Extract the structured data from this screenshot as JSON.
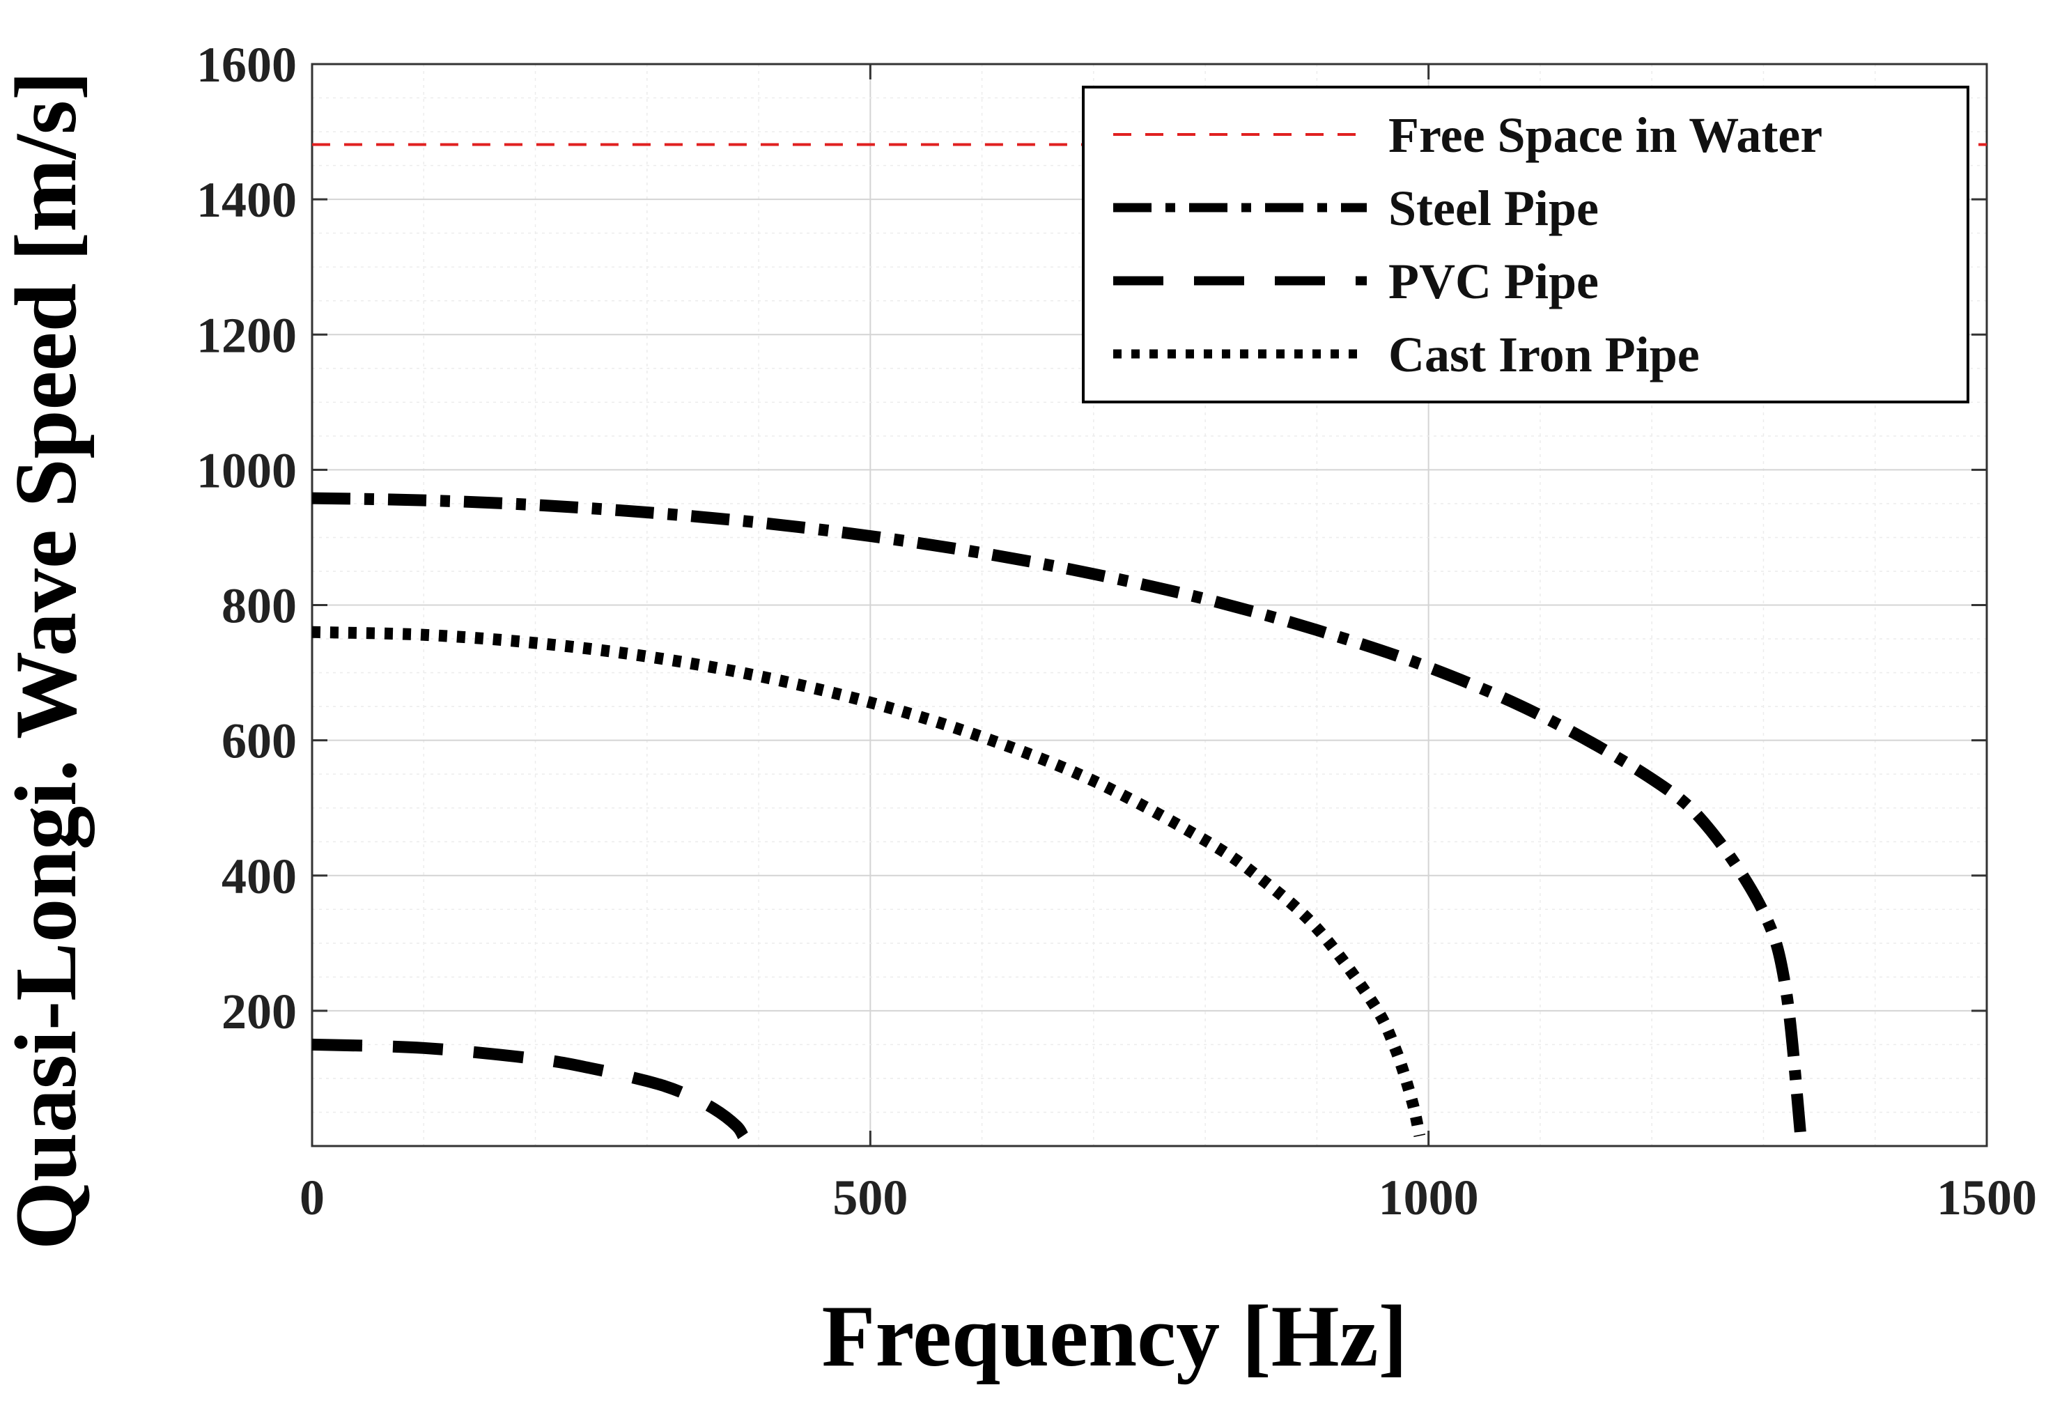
{
  "chart_data": {
    "type": "line",
    "title": "",
    "xlabel": "Frequency [Hz]",
    "ylabel": "Quasi-Longi. Wave Speed [m/s]",
    "xlim": [
      0,
      1500
    ],
    "ylim": [
      0,
      1600
    ],
    "xticks": [
      0,
      500,
      1000,
      1500
    ],
    "xtick_labels": [
      "0",
      "500",
      "1000",
      "1500"
    ],
    "yticks": [
      200,
      400,
      600,
      800,
      1000,
      1200,
      1400,
      1600
    ],
    "ytick_labels": [
      "200",
      "400",
      "600",
      "800",
      "1000",
      "1200",
      "1400",
      "1600"
    ],
    "grid": true,
    "legend_position": "top-right",
    "series": [
      {
        "name": "Free Space in Water",
        "color": "#e02020",
        "style": "thin-dashed",
        "x": [
          0,
          1500
        ],
        "y": [
          1481,
          1481
        ]
      },
      {
        "name": "Steel Pipe",
        "color": "#000000",
        "style": "dash-dot",
        "x": [
          0,
          100,
          200,
          300,
          400,
          500,
          600,
          700,
          800,
          900,
          1000,
          1100,
          1200,
          1250,
          1300,
          1320,
          1333
        ],
        "y": [
          958,
          955,
          948,
          937,
          922,
          902,
          877,
          846,
          809,
          763,
          708,
          637,
          543,
          472,
          346,
          232,
          20
        ]
      },
      {
        "name": "PVC Pipe",
        "color": "#000000",
        "style": "long-dash",
        "x": [
          0,
          100,
          200,
          250,
          300,
          330,
          360,
          380,
          386
        ],
        "y": [
          150,
          145,
          129,
          115,
          96,
          80,
          55,
          30,
          15
        ]
      },
      {
        "name": "Cast Iron Pipe",
        "color": "#000000",
        "style": "dotted",
        "x": [
          0,
          100,
          200,
          300,
          400,
          500,
          600,
          700,
          800,
          850,
          900,
          950,
          970,
          985,
          992
        ],
        "y": [
          760,
          756,
          744,
          724,
          695,
          656,
          605,
          540,
          452,
          395,
          322,
          212,
          145,
          68,
          15
        ]
      }
    ]
  }
}
